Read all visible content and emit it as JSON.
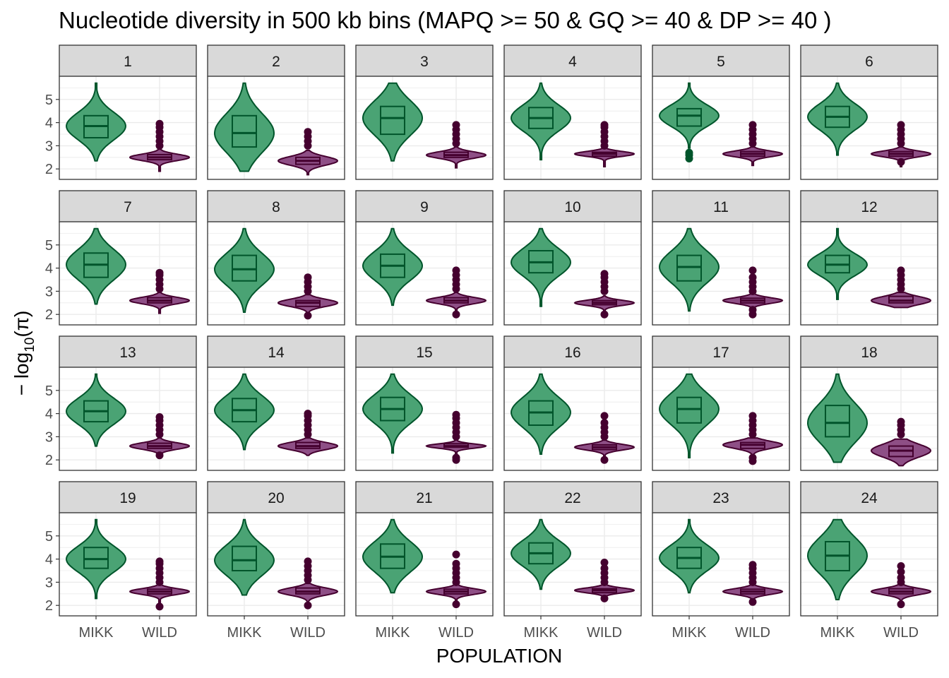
{
  "chart_data": {
    "type": "violin",
    "title": "Nucleotide diversity in 500 kb bins (MAPQ >= 50 & GQ >= 40 & DP >= 40 )",
    "xlabel": "POPULATION",
    "ylabel_parts": {
      "prefix": "− log",
      "subscript": "10",
      "suffix": "(π)"
    },
    "categories": [
      "MIKK",
      "WILD"
    ],
    "ylim": [
      1.55,
      6.0
    ],
    "yticks": [
      2,
      3,
      4,
      5
    ],
    "grid": true,
    "facets": [
      "1",
      "2",
      "3",
      "4",
      "5",
      "6",
      "7",
      "8",
      "9",
      "10",
      "11",
      "12",
      "13",
      "14",
      "15",
      "16",
      "17",
      "18",
      "19",
      "20",
      "21",
      "22",
      "23",
      "24"
    ],
    "colors": {
      "MIKK_fill": "#4aa374",
      "MIKK_line": "#00552b",
      "WILD_fill": "#8e4f86",
      "WILD_line": "#45002f",
      "strip_bg": "#d9d9d9",
      "panel_border": "#333333",
      "grid": "#ebebeb"
    },
    "series": [
      {
        "name": "MIKK",
        "panel": "1",
        "min": 2.35,
        "q1": 3.35,
        "median": 3.85,
        "q3": 4.3,
        "max": 5.7,
        "outliers": []
      },
      {
        "name": "WILD",
        "panel": "1",
        "min": 1.9,
        "q1": 2.4,
        "median": 2.5,
        "q3": 2.62,
        "max": 2.85,
        "outliers": [
          3.0,
          3.2,
          3.4,
          3.6,
          3.8,
          3.95
        ]
      },
      {
        "name": "MIKK",
        "panel": "2",
        "min": 1.9,
        "q1": 2.95,
        "median": 3.55,
        "q3": 4.3,
        "max": 5.7,
        "outliers": []
      },
      {
        "name": "WILD",
        "panel": "2",
        "min": 1.75,
        "q1": 2.2,
        "median": 2.35,
        "q3": 2.5,
        "max": 2.8,
        "outliers": [
          3.0,
          3.2,
          3.4,
          3.6
        ]
      },
      {
        "name": "MIKK",
        "panel": "3",
        "min": 2.35,
        "q1": 3.5,
        "median": 4.2,
        "q3": 4.7,
        "max": 5.7,
        "outliers": []
      },
      {
        "name": "WILD",
        "panel": "3",
        "min": 2.05,
        "q1": 2.5,
        "median": 2.6,
        "q3": 2.72,
        "max": 2.95,
        "outliers": [
          3.1,
          3.3,
          3.5,
          3.7,
          3.9
        ]
      },
      {
        "name": "MIKK",
        "panel": "4",
        "min": 2.4,
        "q1": 3.75,
        "median": 4.2,
        "q3": 4.65,
        "max": 5.7,
        "outliers": []
      },
      {
        "name": "WILD",
        "panel": "4",
        "min": 2.1,
        "q1": 2.55,
        "median": 2.65,
        "q3": 2.72,
        "max": 2.9,
        "outliers": [
          3.0,
          3.2,
          3.4,
          3.6,
          3.8,
          3.9
        ]
      },
      {
        "name": "MIKK",
        "panel": "5",
        "min": 2.9,
        "q1": 3.85,
        "median": 4.3,
        "q3": 4.6,
        "max": 5.7,
        "outliers": [
          2.45,
          2.6,
          2.7
        ]
      },
      {
        "name": "WILD",
        "panel": "5",
        "min": 2.15,
        "q1": 2.55,
        "median": 2.65,
        "q3": 2.75,
        "max": 2.95,
        "outliers": [
          3.1,
          3.3,
          3.5,
          3.7,
          3.9
        ]
      },
      {
        "name": "MIKK",
        "panel": "6",
        "min": 2.6,
        "q1": 3.8,
        "median": 4.25,
        "q3": 4.7,
        "max": 5.7,
        "outliers": []
      },
      {
        "name": "WILD",
        "panel": "6",
        "min": 2.1,
        "q1": 2.55,
        "median": 2.65,
        "q3": 2.75,
        "max": 2.95,
        "outliers": [
          2.3,
          3.1,
          3.3,
          3.5,
          3.7,
          3.9
        ]
      },
      {
        "name": "MIKK",
        "panel": "7",
        "min": 2.45,
        "q1": 3.6,
        "median": 4.15,
        "q3": 4.65,
        "max": 5.7,
        "outliers": []
      },
      {
        "name": "WILD",
        "panel": "7",
        "min": 2.05,
        "q1": 2.5,
        "median": 2.6,
        "q3": 2.72,
        "max": 2.95,
        "outliers": [
          3.1,
          3.3,
          3.5,
          3.7,
          3.8
        ]
      },
      {
        "name": "MIKK",
        "panel": "8",
        "min": 2.1,
        "q1": 3.45,
        "median": 3.95,
        "q3": 4.55,
        "max": 5.7,
        "outliers": []
      },
      {
        "name": "WILD",
        "panel": "8",
        "min": 1.85,
        "q1": 2.35,
        "median": 2.5,
        "q3": 2.6,
        "max": 2.85,
        "outliers": [
          1.95,
          3.0,
          3.2,
          3.4,
          3.6
        ]
      },
      {
        "name": "MIKK",
        "panel": "9",
        "min": 2.4,
        "q1": 3.6,
        "median": 4.1,
        "q3": 4.6,
        "max": 5.7,
        "outliers": []
      },
      {
        "name": "WILD",
        "panel": "9",
        "min": 2.0,
        "q1": 2.5,
        "median": 2.6,
        "q3": 2.72,
        "max": 2.95,
        "outliers": [
          2.0,
          3.1,
          3.3,
          3.5,
          3.7,
          3.9
        ]
      },
      {
        "name": "MIKK",
        "panel": "10",
        "min": 2.35,
        "q1": 3.8,
        "median": 4.25,
        "q3": 4.75,
        "max": 5.7,
        "outliers": []
      },
      {
        "name": "WILD",
        "panel": "10",
        "min": 1.95,
        "q1": 2.42,
        "median": 2.5,
        "q3": 2.6,
        "max": 2.8,
        "outliers": [
          2.0,
          3.0,
          3.2,
          3.4,
          3.6,
          3.75
        ]
      },
      {
        "name": "MIKK",
        "panel": "11",
        "min": 2.15,
        "q1": 3.45,
        "median": 4.05,
        "q3": 4.55,
        "max": 5.7,
        "outliers": []
      },
      {
        "name": "WILD",
        "panel": "11",
        "min": 1.95,
        "q1": 2.5,
        "median": 2.6,
        "q3": 2.7,
        "max": 2.9,
        "outliers": [
          2.0,
          2.2,
          3.0,
          3.2,
          3.4,
          3.6,
          3.9
        ]
      },
      {
        "name": "MIKK",
        "panel": "12",
        "min": 2.65,
        "q1": 3.8,
        "median": 4.15,
        "q3": 4.55,
        "max": 5.7,
        "outliers": []
      },
      {
        "name": "WILD",
        "panel": "12",
        "min": 2.3,
        "q1": 2.5,
        "median": 2.6,
        "q3": 2.78,
        "max": 2.95,
        "outliers": [
          3.1,
          3.3,
          3.5,
          3.7,
          3.9
        ]
      },
      {
        "name": "MIKK",
        "panel": "13",
        "min": 2.6,
        "q1": 3.65,
        "median": 4.1,
        "q3": 4.55,
        "max": 5.7,
        "outliers": []
      },
      {
        "name": "WILD",
        "panel": "13",
        "min": 2.1,
        "q1": 2.5,
        "median": 2.6,
        "q3": 2.72,
        "max": 2.95,
        "outliers": [
          2.2,
          3.1,
          3.3,
          3.5,
          3.7,
          3.85
        ]
      },
      {
        "name": "MIKK",
        "panel": "14",
        "min": 2.45,
        "q1": 3.65,
        "median": 4.15,
        "q3": 4.65,
        "max": 5.7,
        "outliers": []
      },
      {
        "name": "WILD",
        "panel": "14",
        "min": 2.2,
        "q1": 2.5,
        "median": 2.6,
        "q3": 2.75,
        "max": 2.95,
        "outliers": [
          3.1,
          3.3,
          3.5,
          3.7,
          3.9,
          4.0
        ]
      },
      {
        "name": "MIKK",
        "panel": "15",
        "min": 2.3,
        "q1": 3.7,
        "median": 4.2,
        "q3": 4.7,
        "max": 5.7,
        "outliers": []
      },
      {
        "name": "WILD",
        "panel": "15",
        "min": 1.95,
        "q1": 2.55,
        "median": 2.6,
        "q3": 2.7,
        "max": 2.9,
        "outliers": [
          2.0,
          2.1,
          3.0,
          3.2,
          3.4,
          3.6,
          3.8,
          3.95
        ]
      },
      {
        "name": "MIKK",
        "panel": "16",
        "min": 2.25,
        "q1": 3.5,
        "median": 4.05,
        "q3": 4.55,
        "max": 5.7,
        "outliers": []
      },
      {
        "name": "WILD",
        "panel": "16",
        "min": 1.95,
        "q1": 2.45,
        "median": 2.55,
        "q3": 2.65,
        "max": 2.85,
        "outliers": [
          2.0,
          3.0,
          3.2,
          3.4,
          3.6,
          3.9
        ]
      },
      {
        "name": "MIKK",
        "panel": "17",
        "min": 2.1,
        "q1": 3.6,
        "median": 4.2,
        "q3": 4.7,
        "max": 5.7,
        "outliers": []
      },
      {
        "name": "WILD",
        "panel": "17",
        "min": 1.9,
        "q1": 2.5,
        "median": 2.65,
        "q3": 2.75,
        "max": 2.95,
        "outliers": [
          1.95,
          2.1,
          3.1,
          3.3,
          3.5,
          3.7,
          3.9
        ]
      },
      {
        "name": "MIKK",
        "panel": "18",
        "min": 1.9,
        "q1": 3.0,
        "median": 3.6,
        "q3": 4.35,
        "max": 5.7,
        "outliers": []
      },
      {
        "name": "WILD",
        "panel": "18",
        "min": 1.75,
        "q1": 2.15,
        "median": 2.4,
        "q3": 2.6,
        "max": 2.9,
        "outliers": [
          3.1,
          3.3,
          3.5,
          3.65
        ]
      },
      {
        "name": "MIKK",
        "panel": "19",
        "min": 2.3,
        "q1": 3.6,
        "median": 4.0,
        "q3": 4.5,
        "max": 5.7,
        "outliers": []
      },
      {
        "name": "WILD",
        "panel": "19",
        "min": 1.9,
        "q1": 2.5,
        "median": 2.6,
        "q3": 2.7,
        "max": 2.9,
        "outliers": [
          1.95,
          3.0,
          3.2,
          3.4,
          3.6,
          3.8,
          3.9
        ]
      },
      {
        "name": "MIKK",
        "panel": "20",
        "min": 2.45,
        "q1": 3.5,
        "median": 3.95,
        "q3": 4.55,
        "max": 5.7,
        "outliers": []
      },
      {
        "name": "WILD",
        "panel": "20",
        "min": 1.9,
        "q1": 2.5,
        "median": 2.6,
        "q3": 2.75,
        "max": 2.95,
        "outliers": [
          2.0,
          3.1,
          3.3,
          3.5,
          3.7,
          3.9
        ]
      },
      {
        "name": "MIKK",
        "panel": "21",
        "min": 2.55,
        "q1": 3.6,
        "median": 4.1,
        "q3": 4.65,
        "max": 5.7,
        "outliers": []
      },
      {
        "name": "WILD",
        "panel": "21",
        "min": 2.0,
        "q1": 2.5,
        "median": 2.6,
        "q3": 2.7,
        "max": 2.9,
        "outliers": [
          2.05,
          3.0,
          3.2,
          3.4,
          3.6,
          3.8,
          4.2
        ]
      },
      {
        "name": "MIKK",
        "panel": "22",
        "min": 2.7,
        "q1": 3.8,
        "median": 4.25,
        "q3": 4.7,
        "max": 5.7,
        "outliers": []
      },
      {
        "name": "WILD",
        "panel": "22",
        "min": 2.25,
        "q1": 2.55,
        "median": 2.65,
        "q3": 2.72,
        "max": 2.9,
        "outliers": [
          2.3,
          3.0,
          3.2,
          3.4,
          3.6,
          3.85
        ]
      },
      {
        "name": "MIKK",
        "panel": "23",
        "min": 2.55,
        "q1": 3.6,
        "median": 4.05,
        "q3": 4.5,
        "max": 5.7,
        "outliers": []
      },
      {
        "name": "WILD",
        "panel": "23",
        "min": 2.1,
        "q1": 2.5,
        "median": 2.6,
        "q3": 2.7,
        "max": 2.9,
        "outliers": [
          2.15,
          3.0,
          3.2,
          3.4,
          3.6,
          3.75
        ]
      },
      {
        "name": "MIKK",
        "panel": "24",
        "min": 2.25,
        "q1": 3.5,
        "median": 4.15,
        "q3": 4.75,
        "max": 5.7,
        "outliers": []
      },
      {
        "name": "WILD",
        "panel": "24",
        "min": 2.0,
        "q1": 2.5,
        "median": 2.6,
        "q3": 2.72,
        "max": 2.9,
        "outliers": [
          2.05,
          3.0,
          3.2,
          3.45,
          3.7
        ]
      }
    ]
  }
}
